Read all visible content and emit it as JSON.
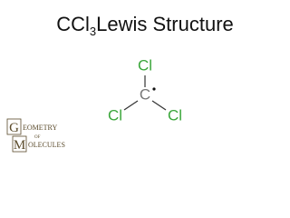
{
  "title": {
    "formula": "CCl",
    "subscript": "3",
    "rest": "Lewis Structure"
  },
  "nodes": [
    {
      "label": "Cl"
    },
    {
      "label": "C"
    },
    {
      "label": "Cl"
    },
    {
      "label": "Cl"
    }
  ],
  "logo": {
    "initial_1": "G",
    "rest_1": "EOMETRY",
    "middle": "OF",
    "initial_2": "M",
    "rest_2": "OLECULES"
  }
}
